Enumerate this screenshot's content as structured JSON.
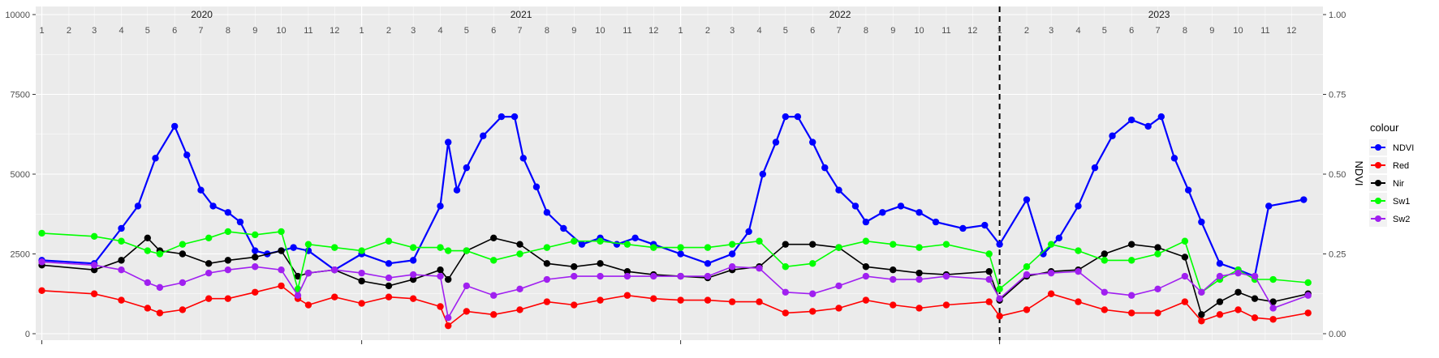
{
  "chart_data": {
    "type": "line",
    "title": "",
    "xlabel": "",
    "ylabel_left": "",
    "ylabel_right": "NDVI",
    "ylim_left": [
      0,
      10000
    ],
    "ylim_right": [
      0,
      1
    ],
    "left_ticks": [
      0,
      2500,
      5000,
      7500,
      10000
    ],
    "right_ticks": [
      "0.00",
      "0.25",
      "0.50",
      "0.75",
      "1.00"
    ],
    "year_labels": [
      "2020",
      "2021",
      "2022",
      "2023"
    ],
    "month_labels": [
      "1",
      "2",
      "3",
      "4",
      "5",
      "6",
      "7",
      "8",
      "9",
      "10",
      "11",
      "12"
    ],
    "vline_x": "2023-01-01",
    "vline_style": "dashed",
    "grid": true,
    "legend_title": "colour",
    "legend_position": "right",
    "series": [
      {
        "name": "NDVI",
        "color": "#0000FF",
        "axis": "right",
        "x": [
          "2020-01-01",
          "2020-03-01",
          "2020-04-01",
          "2020-04-20",
          "2020-05-10",
          "2020-06-01",
          "2020-06-15",
          "2020-07-01",
          "2020-07-15",
          "2020-08-01",
          "2020-08-15",
          "2020-09-01",
          "2020-09-15",
          "2020-10-01",
          "2020-10-15",
          "2020-11-01",
          "2020-12-01",
          "2021-01-01",
          "2021-02-01",
          "2021-03-01",
          "2021-04-01",
          "2021-04-10",
          "2021-04-20",
          "2021-05-01",
          "2021-05-20",
          "2021-06-10",
          "2021-06-25",
          "2021-07-05",
          "2021-07-20",
          "2021-08-01",
          "2021-08-20",
          "2021-09-10",
          "2021-10-01",
          "2021-10-20",
          "2021-11-10",
          "2021-12-01",
          "2022-01-01",
          "2022-02-01",
          "2022-03-01",
          "2022-03-20",
          "2022-04-05",
          "2022-04-20",
          "2022-05-01",
          "2022-05-15",
          "2022-06-01",
          "2022-06-15",
          "2022-07-01",
          "2022-07-20",
          "2022-08-01",
          "2022-08-20",
          "2022-09-10",
          "2022-10-01",
          "2022-10-20",
          "2022-11-20",
          "2022-12-15",
          "2023-01-01",
          "2023-02-01",
          "2023-02-20",
          "2023-03-10",
          "2023-04-01",
          "2023-04-20",
          "2023-05-10",
          "2023-06-01",
          "2023-06-20",
          "2023-07-05",
          "2023-07-20",
          "2023-08-05",
          "2023-08-20",
          "2023-09-10",
          "2023-10-01",
          "2023-10-20",
          "2023-11-05",
          "2023-12-15"
        ],
        "y": [
          0.23,
          0.22,
          0.33,
          0.4,
          0.55,
          0.65,
          0.56,
          0.45,
          0.4,
          0.38,
          0.35,
          0.26,
          0.25,
          0.26,
          0.27,
          0.26,
          0.2,
          0.25,
          0.22,
          0.23,
          0.4,
          0.6,
          0.45,
          0.52,
          0.62,
          0.68,
          0.68,
          0.55,
          0.46,
          0.38,
          0.33,
          0.28,
          0.3,
          0.28,
          0.3,
          0.28,
          0.25,
          0.22,
          0.25,
          0.32,
          0.5,
          0.6,
          0.68,
          0.68,
          0.6,
          0.52,
          0.45,
          0.4,
          0.35,
          0.38,
          0.4,
          0.38,
          0.35,
          0.33,
          0.34,
          0.28,
          0.42,
          0.25,
          0.3,
          0.4,
          0.52,
          0.62,
          0.67,
          0.65,
          0.68,
          0.55,
          0.45,
          0.35,
          0.22,
          0.2,
          0.18,
          0.4,
          0.42
        ]
      },
      {
        "name": "Red",
        "color": "#FF0000",
        "axis": "left",
        "x": [
          "2020-01-01",
          "2020-03-01",
          "2020-04-01",
          "2020-05-01",
          "2020-05-15",
          "2020-06-10",
          "2020-07-10",
          "2020-08-01",
          "2020-09-01",
          "2020-10-01",
          "2020-10-20",
          "2020-11-01",
          "2020-12-01",
          "2021-01-01",
          "2021-02-01",
          "2021-03-01",
          "2021-04-01",
          "2021-04-10",
          "2021-05-01",
          "2021-06-01",
          "2021-07-01",
          "2021-08-01",
          "2021-09-01",
          "2021-10-01",
          "2021-11-01",
          "2021-12-01",
          "2022-01-01",
          "2022-02-01",
          "2022-03-01",
          "2022-04-01",
          "2022-05-01",
          "2022-06-01",
          "2022-07-01",
          "2022-08-01",
          "2022-09-01",
          "2022-10-01",
          "2022-11-01",
          "2022-12-20",
          "2023-01-01",
          "2023-02-01",
          "2023-03-01",
          "2023-04-01",
          "2023-05-01",
          "2023-06-01",
          "2023-07-01",
          "2023-08-01",
          "2023-08-20",
          "2023-09-10",
          "2023-10-01",
          "2023-10-20",
          "2023-11-10",
          "2023-12-20"
        ],
        "y": [
          1350,
          1250,
          1050,
          800,
          650,
          750,
          1100,
          1100,
          1300,
          1500,
          1100,
          900,
          1150,
          950,
          1150,
          1100,
          850,
          250,
          700,
          600,
          750,
          1000,
          900,
          1050,
          1200,
          1100,
          1050,
          1050,
          1000,
          1000,
          650,
          700,
          800,
          1050,
          900,
          800,
          900,
          1000,
          550,
          750,
          1250,
          1000,
          750,
          650,
          650,
          1000,
          400,
          600,
          750,
          500,
          450,
          650
        ]
      },
      {
        "name": "Nir",
        "color": "#000000",
        "axis": "left",
        "x": [
          "2020-01-01",
          "2020-03-01",
          "2020-04-01",
          "2020-05-01",
          "2020-05-15",
          "2020-06-10",
          "2020-07-10",
          "2020-08-01",
          "2020-09-01",
          "2020-10-01",
          "2020-10-20",
          "2020-11-01",
          "2020-12-01",
          "2021-01-01",
          "2021-02-01",
          "2021-03-01",
          "2021-04-01",
          "2021-04-10",
          "2021-05-01",
          "2021-06-01",
          "2021-07-01",
          "2021-08-01",
          "2021-09-01",
          "2021-10-01",
          "2021-11-01",
          "2021-12-01",
          "2022-01-01",
          "2022-02-01",
          "2022-03-01",
          "2022-04-01",
          "2022-05-01",
          "2022-06-01",
          "2022-07-01",
          "2022-08-01",
          "2022-09-01",
          "2022-10-01",
          "2022-11-01",
          "2022-12-20",
          "2023-01-01",
          "2023-02-01",
          "2023-03-01",
          "2023-04-01",
          "2023-05-01",
          "2023-06-01",
          "2023-07-01",
          "2023-08-01",
          "2023-08-20",
          "2023-09-10",
          "2023-10-01",
          "2023-10-20",
          "2023-11-10",
          "2023-12-20"
        ],
        "y": [
          2150,
          2000,
          2300,
          3000,
          2600,
          2500,
          2200,
          2300,
          2400,
          2600,
          1800,
          1900,
          2000,
          1650,
          1500,
          1700,
          2000,
          1700,
          2600,
          3000,
          2800,
          2200,
          2100,
          2200,
          1950,
          1850,
          1800,
          1750,
          2000,
          2100,
          2800,
          2800,
          2700,
          2100,
          2000,
          1900,
          1850,
          1950,
          1050,
          1800,
          1950,
          2000,
          2500,
          2800,
          2700,
          2400,
          600,
          1000,
          1300,
          1100,
          1000,
          1250
        ]
      },
      {
        "name": "Sw1",
        "color": "#00FF00",
        "axis": "left",
        "x": [
          "2020-01-01",
          "2020-03-01",
          "2020-04-01",
          "2020-05-01",
          "2020-05-15",
          "2020-06-10",
          "2020-07-10",
          "2020-08-01",
          "2020-09-01",
          "2020-10-01",
          "2020-10-20",
          "2020-11-01",
          "2020-12-01",
          "2021-01-01",
          "2021-02-01",
          "2021-03-01",
          "2021-04-01",
          "2021-04-10",
          "2021-05-01",
          "2021-06-01",
          "2021-07-01",
          "2021-08-01",
          "2021-09-01",
          "2021-10-01",
          "2021-11-01",
          "2021-12-01",
          "2022-01-01",
          "2022-02-01",
          "2022-03-01",
          "2022-04-01",
          "2022-05-01",
          "2022-06-01",
          "2022-07-01",
          "2022-08-01",
          "2022-09-01",
          "2022-10-01",
          "2022-11-01",
          "2022-12-20",
          "2023-01-01",
          "2023-02-01",
          "2023-03-01",
          "2023-04-01",
          "2023-05-01",
          "2023-06-01",
          "2023-07-01",
          "2023-08-01",
          "2023-08-20",
          "2023-09-10",
          "2023-10-01",
          "2023-10-20",
          "2023-11-10",
          "2023-12-20"
        ],
        "y": [
          3150,
          3050,
          2900,
          2600,
          2500,
          2800,
          3000,
          3200,
          3100,
          3200,
          1400,
          2800,
          2700,
          2600,
          2900,
          2700,
          2700,
          2600,
          2600,
          2300,
          2500,
          2700,
          2900,
          2900,
          2800,
          2700,
          2700,
          2700,
          2800,
          2900,
          2100,
          2200,
          2700,
          2900,
          2800,
          2700,
          2800,
          2500,
          1400,
          2100,
          2800,
          2600,
          2300,
          2300,
          2500,
          2900,
          1300,
          1700,
          2000,
          1700,
          1700,
          1600
        ]
      },
      {
        "name": "Sw2",
        "color": "#A020F0",
        "axis": "left",
        "x": [
          "2020-01-01",
          "2020-03-01",
          "2020-04-01",
          "2020-05-01",
          "2020-05-15",
          "2020-06-10",
          "2020-07-10",
          "2020-08-01",
          "2020-09-01",
          "2020-10-01",
          "2020-10-20",
          "2020-11-01",
          "2020-12-01",
          "2021-01-01",
          "2021-02-01",
          "2021-03-01",
          "2021-04-01",
          "2021-04-10",
          "2021-05-01",
          "2021-06-01",
          "2021-07-01",
          "2021-08-01",
          "2021-09-01",
          "2021-10-01",
          "2021-11-01",
          "2021-12-01",
          "2022-01-01",
          "2022-02-01",
          "2022-03-01",
          "2022-04-01",
          "2022-05-01",
          "2022-06-01",
          "2022-07-01",
          "2022-08-01",
          "2022-09-01",
          "2022-10-01",
          "2022-11-01",
          "2022-12-20",
          "2023-01-01",
          "2023-02-01",
          "2023-03-01",
          "2023-04-01",
          "2023-05-01",
          "2023-06-01",
          "2023-07-01",
          "2023-08-01",
          "2023-08-20",
          "2023-09-10",
          "2023-10-01",
          "2023-10-20",
          "2023-11-10",
          "2023-12-20"
        ],
        "y": [
          2250,
          2150,
          2000,
          1600,
          1450,
          1600,
          1900,
          2000,
          2100,
          2000,
          1200,
          1900,
          2000,
          1900,
          1750,
          1850,
          1800,
          500,
          1500,
          1200,
          1400,
          1700,
          1800,
          1800,
          1800,
          1800,
          1800,
          1800,
          2100,
          2050,
          1300,
          1250,
          1500,
          1800,
          1700,
          1700,
          1800,
          1700,
          1100,
          1850,
          1900,
          1950,
          1300,
          1200,
          1400,
          1800,
          1300,
          1800,
          1900,
          1800,
          800,
          1200
        ]
      }
    ]
  }
}
